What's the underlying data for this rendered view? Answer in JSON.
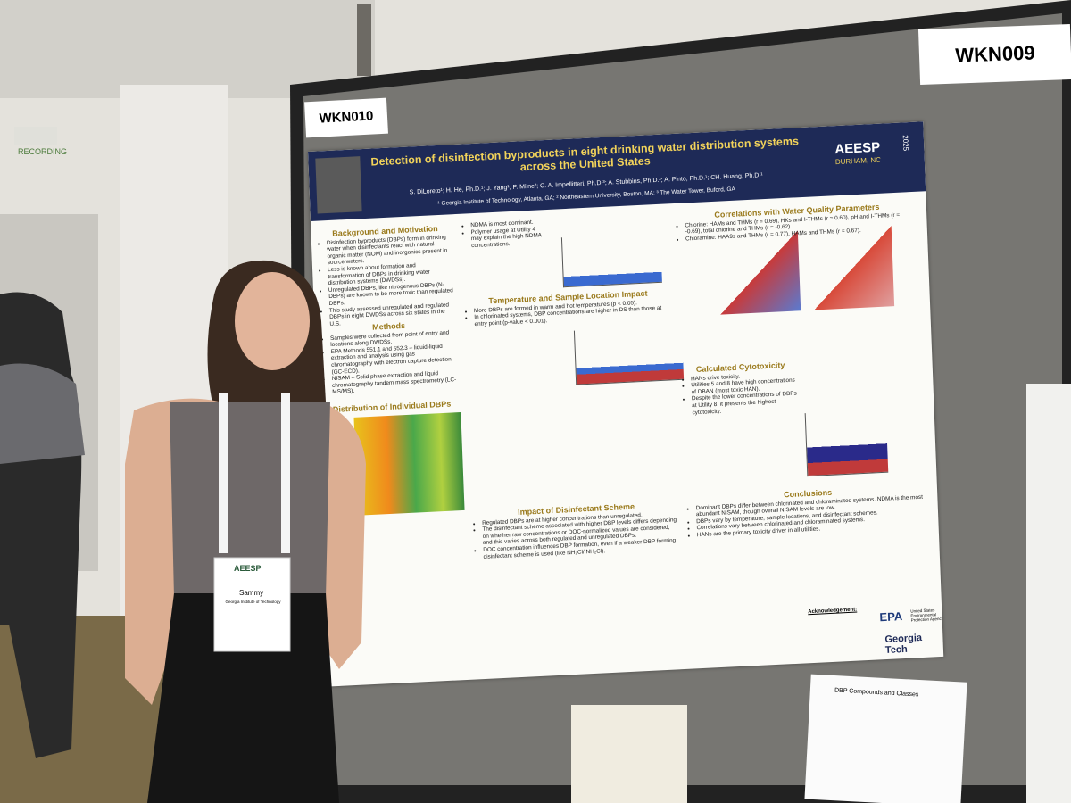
{
  "labels": {
    "left_board": "WKN010",
    "right_board": "WKN009",
    "recording": "RECORDING"
  },
  "poster": {
    "title": "Detection of disinfection byproducts in eight drinking water distribution systems across the United States",
    "authors": "S. DiLoreto¹; H. He, Ph.D.¹; J. Yang¹; P. Milne²; C. A. Impellitteri, Ph.D.³; A. Stubbins, Ph.D.²; A. Pinto, Ph.D.¹; CH. Huang, Ph.D.¹",
    "affiliations": "¹ Georgia Institute of Technology, Atlanta, GA; ² Northeastern University, Boston, MA; ³ The Water Tower, Buford, GA",
    "logo": "AEESP",
    "logo_place": "DURHAM, NC",
    "logo_year": "2025",
    "sections": [
      {
        "heading": "Background and Motivation",
        "bullets": [
          "Disinfection byproducts (DBPs) form in drinking water when disinfectants react with natural organic matter (NOM) and inorganics present in source waters.",
          "Less is known about formation and transformation of DBPs in drinking water distribution systems (DWDSs).",
          "Unregulated DBPs, like nitrogenous DBPs (N-DBPs) are known to be more toxic than regulated DBPs.",
          "This study assessed unregulated and regulated DBPs in eight DWDSs across six states in the U.S."
        ]
      },
      {
        "heading": "Methods",
        "bullets": [
          "Samples were collected from point of entry and locations along DWDSs.",
          "EPA Methods 551.1 and 552.3 – liquid-liquid extraction and analysis using gas chromatography with electron capture detection (GC-ECD).",
          "NISAM – Solid phase extraction and liquid chromatography tandem mass spectrometry (LC-MS/MS)."
        ]
      },
      {
        "heading": "Distribution of Individual DBPs",
        "bullets": []
      },
      {
        "heading": "",
        "bullets": [
          "NDMA is most dominant.",
          "Polymer usage at Utility 4 may explain the high NDMA concentrations."
        ]
      },
      {
        "heading": "Temperature and Sample Location Impact",
        "bullets": [
          "More DBPs are formed in warm and hot temperatures (p < 0.05).",
          "In chlorinated systems, DBP concentrations are higher in DS than those at entry point (p-value < 0.001)."
        ]
      },
      {
        "heading": "Impact of Disinfectant Scheme",
        "bullets": [
          "Regulated DBPs are at higher concentrations than unregulated.",
          "The disinfectant scheme associated with higher DBP levels differs depending on whether raw concentrations or DOC-normalized values are considered, and this varies across both regulated and unregulated DBPs.",
          "DOC concentration influences DBP formation, even if a weaker DBP forming disinfectant scheme is used (like NH₂Cl/ NH₂Cl)."
        ]
      },
      {
        "heading": "Correlations with Water Quality Parameters",
        "bullets": [
          "Chlorine: HAMs and THMs (r = 0.69), HKs and I-THMs (r = 0.60), pH and I-THMs (r = -0.69), total chlorine and THMs (r = -0.62).",
          "Chloramine: HAA9s and THMs (r = 0.77), HAMs and THMs (r = 0.67)."
        ]
      },
      {
        "heading": "Calculated Cytotoxicity",
        "bullets": [
          "HANs drive toxicity.",
          "Utilities 5 and 8 have high concentrations of DBAN (most toxic HAN).",
          "Despite the lower concentrations of DBPs at Utility 8, it presents the highest cytotoxicity."
        ]
      },
      {
        "heading": "Conclusions",
        "bullets": [
          "Dominant DBPs differ between chlorinated and chloraminated systems. NDMA is the most abundant NISAM, though overall NISAM levels are low.",
          "DBPs vary by temperature, sample locations, and disinfectant schemes.",
          "Correlations vary between chlorinated and chloraminated systems.",
          "HANs are the primary toxicity driver in all utilities."
        ]
      }
    ],
    "acknowledgement": "Acknowledgement:",
    "epa": "EPA",
    "epa_name": "United States Environmental Protection Agency",
    "gt": "Georgia Tech"
  },
  "badge": {
    "logo": "AEESP",
    "name": "Sammy",
    "affiliation": "Georgia Institute of Technology"
  },
  "handout": {
    "title": "DBP Compounds and Classes"
  }
}
